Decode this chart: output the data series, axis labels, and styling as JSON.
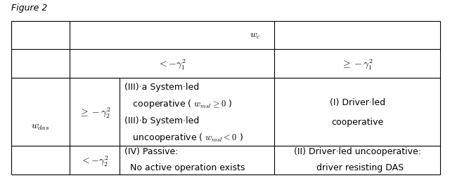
{
  "bg_color": "#ffffff",
  "table_border_color": "#000000",
  "header_wc": "$w_c$",
  "col1_header": "$<-\\gamma_1^2$",
  "col2_header": "$\\geq-\\gamma_1^2$",
  "row_label_main": "$w_{das}$",
  "row1_label": "$\\geq-\\gamma_2^2$",
  "row2_label": "$<-\\gamma_2^2$",
  "cell_III_lines": [
    "(III)·a System·led",
    "   cooperative ( $w_{msl} \\geq 0$ )",
    "(III)·b System·led",
    "   uncooperative ( $w_{msl} < 0$ )"
  ],
  "cell_I_line1": "(I) Driver·led",
  "cell_I_line2": "cooperative",
  "cell_IV_line1": "(IV) Passive:",
  "cell_IV_line2": "  No active operation exists",
  "cell_II_line1": "(II) Driver·led uncooperative:",
  "cell_II_line2": "  driver resisting DAS",
  "fig_label": "Figure 2",
  "font_size": 9,
  "math_font_size": 10
}
